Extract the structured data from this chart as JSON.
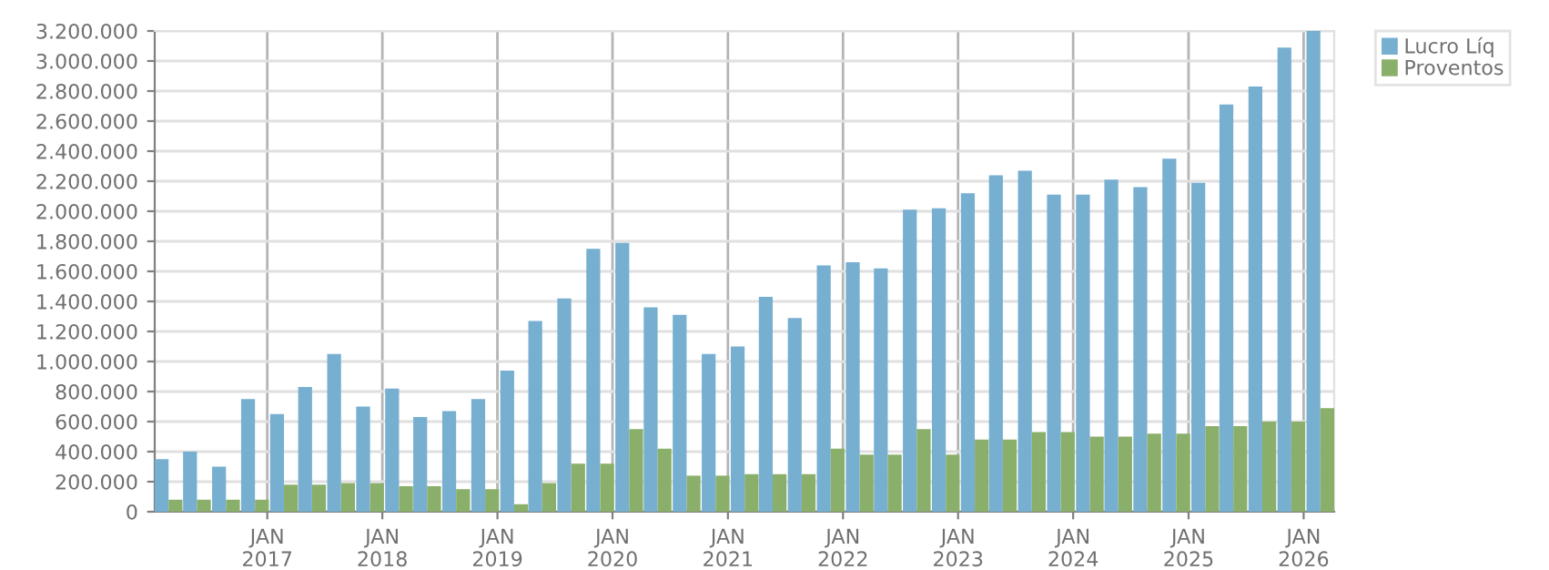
{
  "chart_data": {
    "type": "bar",
    "x": [
      "2016-02-23",
      "2016-05-23",
      "2016-08-23",
      "2016-11-23",
      "2017-02-23",
      "2017-05-23",
      "2017-08-23",
      "2017-11-23",
      "2018-02-23",
      "2018-05-23",
      "2018-08-23",
      "2018-11-23",
      "2019-02-23",
      "2019-05-23",
      "2019-08-23",
      "2019-11-23",
      "2020-02-23",
      "2020-05-23",
      "2020-08-23",
      "2020-11-23",
      "2021-02-23",
      "2021-05-23",
      "2021-08-23",
      "2021-11-23",
      "2022-02-23",
      "2022-05-23",
      "2022-08-23",
      "2022-11-23",
      "2023-02-23",
      "2023-05-23",
      "2023-08-23",
      "2023-11-23",
      "2024-02-23",
      "2024-05-23",
      "2024-08-23",
      "2024-11-23",
      "2025-02-23",
      "2025-05-23",
      "2025-08-23",
      "2025-11-23",
      "2026-02-23"
    ],
    "series": [
      {
        "name": "Lucro Líq",
        "color": "#77afd1",
        "values": [
          350000,
          400000,
          300000,
          750000,
          650000,
          830000,
          1050000,
          700000,
          820000,
          630000,
          670000,
          750000,
          940000,
          1270000,
          1420000,
          1750000,
          1790000,
          1360000,
          1310000,
          1050000,
          1100000,
          1430000,
          1290000,
          1640000,
          1660000,
          1620000,
          2010000,
          2020000,
          2120000,
          2240000,
          2270000,
          2110000,
          2110000,
          2210000,
          2160000,
          2350000,
          2190000,
          2710000,
          2830000,
          3090000,
          3200000
        ]
      },
      {
        "name": "Proventos",
        "color": "#8aaf6b",
        "values": [
          80000,
          80000,
          80000,
          80000,
          180000,
          180000,
          190000,
          190000,
          170000,
          170000,
          150000,
          150000,
          50000,
          190000,
          320000,
          320000,
          550000,
          420000,
          240000,
          240000,
          250000,
          250000,
          250000,
          420000,
          380000,
          380000,
          550000,
          380000,
          480000,
          480000,
          530000,
          530000,
          500000,
          500000,
          520000,
          520000,
          570000,
          570000,
          600000,
          600000,
          690000
        ]
      }
    ],
    "xlim": [
      "2016-01-10",
      "2026-04-08"
    ],
    "xticks": [
      {
        "value": "2017-01-01",
        "label": "JAN\n2017"
      },
      {
        "value": "2018-01-01",
        "label": "JAN\n2018"
      },
      {
        "value": "2019-01-01",
        "label": "JAN\n2019"
      },
      {
        "value": "2020-01-01",
        "label": "JAN\n2020"
      },
      {
        "value": "2021-01-01",
        "label": "JAN\n2021"
      },
      {
        "value": "2022-01-01",
        "label": "JAN\n2022"
      },
      {
        "value": "2023-01-01",
        "label": "JAN\n2023"
      },
      {
        "value": "2024-01-01",
        "label": "JAN\n2024"
      },
      {
        "value": "2025-01-01",
        "label": "JAN\n2025"
      },
      {
        "value": "2026-01-01",
        "label": "JAN\n2026"
      }
    ],
    "ylim": [
      0,
      3200000
    ],
    "yticks": [
      0,
      {
        "value": 200000,
        "label": "200.000"
      },
      {
        "value": 400000,
        "label": "400.000"
      },
      {
        "value": 600000,
        "label": "600.000"
      },
      {
        "value": 800000,
        "label": "800.000"
      },
      {
        "value": 1000000,
        "label": "1.000.000"
      },
      {
        "value": 1200000,
        "label": "1.200.000"
      },
      {
        "value": 1400000,
        "label": "1.400.000"
      },
      {
        "value": 1600000,
        "label": "1.600.000"
      },
      {
        "value": 1800000,
        "label": "1.800.000"
      },
      {
        "value": 2000000,
        "label": "2.000.000"
      },
      {
        "value": 2200000,
        "label": "2.200.000"
      },
      {
        "value": 2400000,
        "label": "2.400.000"
      },
      {
        "value": 2600000,
        "label": "2.600.000"
      },
      {
        "value": 2800000,
        "label": "2.800.000"
      },
      {
        "value": 3000000,
        "label": "3.000.000"
      },
      {
        "value": 3200000,
        "label": "3.200.000"
      }
    ],
    "grid": true,
    "legend": "top right"
  }
}
